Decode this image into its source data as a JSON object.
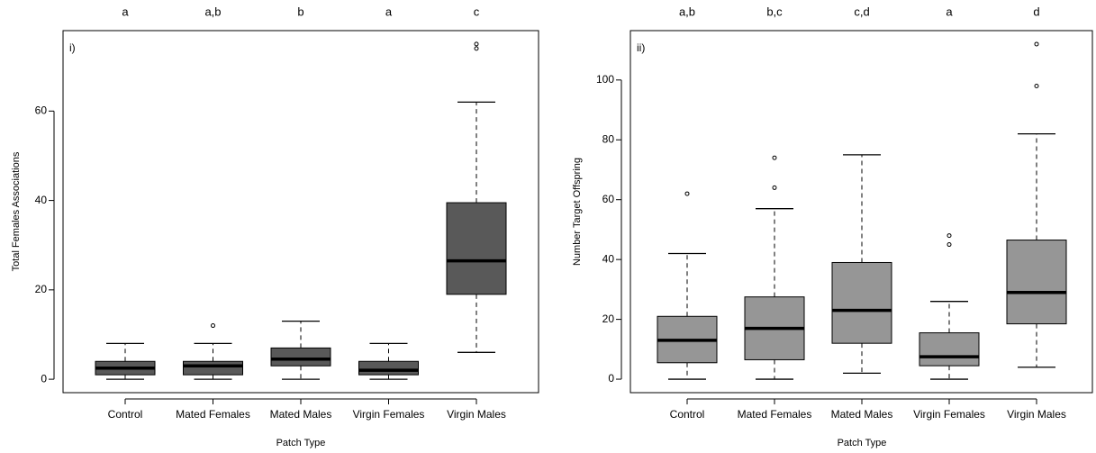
{
  "chart_data": [
    {
      "type": "box",
      "panel_label": "i)",
      "ylabel": "Total Females Associations",
      "xlabel": "Patch Type",
      "categories": [
        "Control",
        "Mated Females",
        "Mated Males",
        "Virgin Females",
        "Virgin Males"
      ],
      "letters": [
        "a",
        "a,b",
        "b",
        "a",
        "c"
      ],
      "color": "#595959",
      "boxes": [
        {
          "min": 0,
          "q1": 1,
          "median": 2.5,
          "q3": 4,
          "max": 8,
          "outliers": []
        },
        {
          "min": 0,
          "q1": 1,
          "median": 3,
          "q3": 4,
          "max": 8,
          "outliers": [
            12
          ]
        },
        {
          "min": 0,
          "q1": 3,
          "median": 4.5,
          "q3": 7,
          "max": 13,
          "outliers": []
        },
        {
          "min": 0,
          "q1": 1,
          "median": 2,
          "q3": 4,
          "max": 8,
          "outliers": []
        },
        {
          "min": 6,
          "q1": 19,
          "median": 26.5,
          "q3": 39.5,
          "max": 62,
          "outliers": [
            74,
            75
          ]
        }
      ],
      "ylim": [
        -3,
        78
      ],
      "yticks": [
        0,
        20,
        40,
        60
      ]
    },
    {
      "type": "box",
      "panel_label": "ii)",
      "ylabel": "Number Target Offspring",
      "xlabel": "Patch Type",
      "categories": [
        "Control",
        "Mated Females",
        "Mated Males",
        "Virgin Females",
        "Virgin Males"
      ],
      "letters": [
        "a,b",
        "b,c",
        "c,d",
        "a",
        "d"
      ],
      "color": "#969696",
      "boxes": [
        {
          "min": 0,
          "q1": 5.5,
          "median": 13,
          "q3": 21,
          "max": 42,
          "outliers": [
            62
          ]
        },
        {
          "min": 0,
          "q1": 6.5,
          "median": 17,
          "q3": 27.5,
          "max": 57,
          "outliers": [
            64,
            74
          ]
        },
        {
          "min": 2,
          "q1": 12,
          "median": 23,
          "q3": 39,
          "max": 75,
          "outliers": []
        },
        {
          "min": 0,
          "q1": 4.5,
          "median": 7.5,
          "q3": 15.5,
          "max": 26,
          "outliers": [
            45,
            48
          ]
        },
        {
          "min": 4,
          "q1": 18.5,
          "median": 29,
          "q3": 46.5,
          "max": 82,
          "outliers": [
            98,
            112
          ]
        }
      ],
      "ylim": [
        -4.5,
        116.5
      ],
      "yticks": [
        0,
        20,
        40,
        60,
        80,
        100
      ]
    }
  ]
}
